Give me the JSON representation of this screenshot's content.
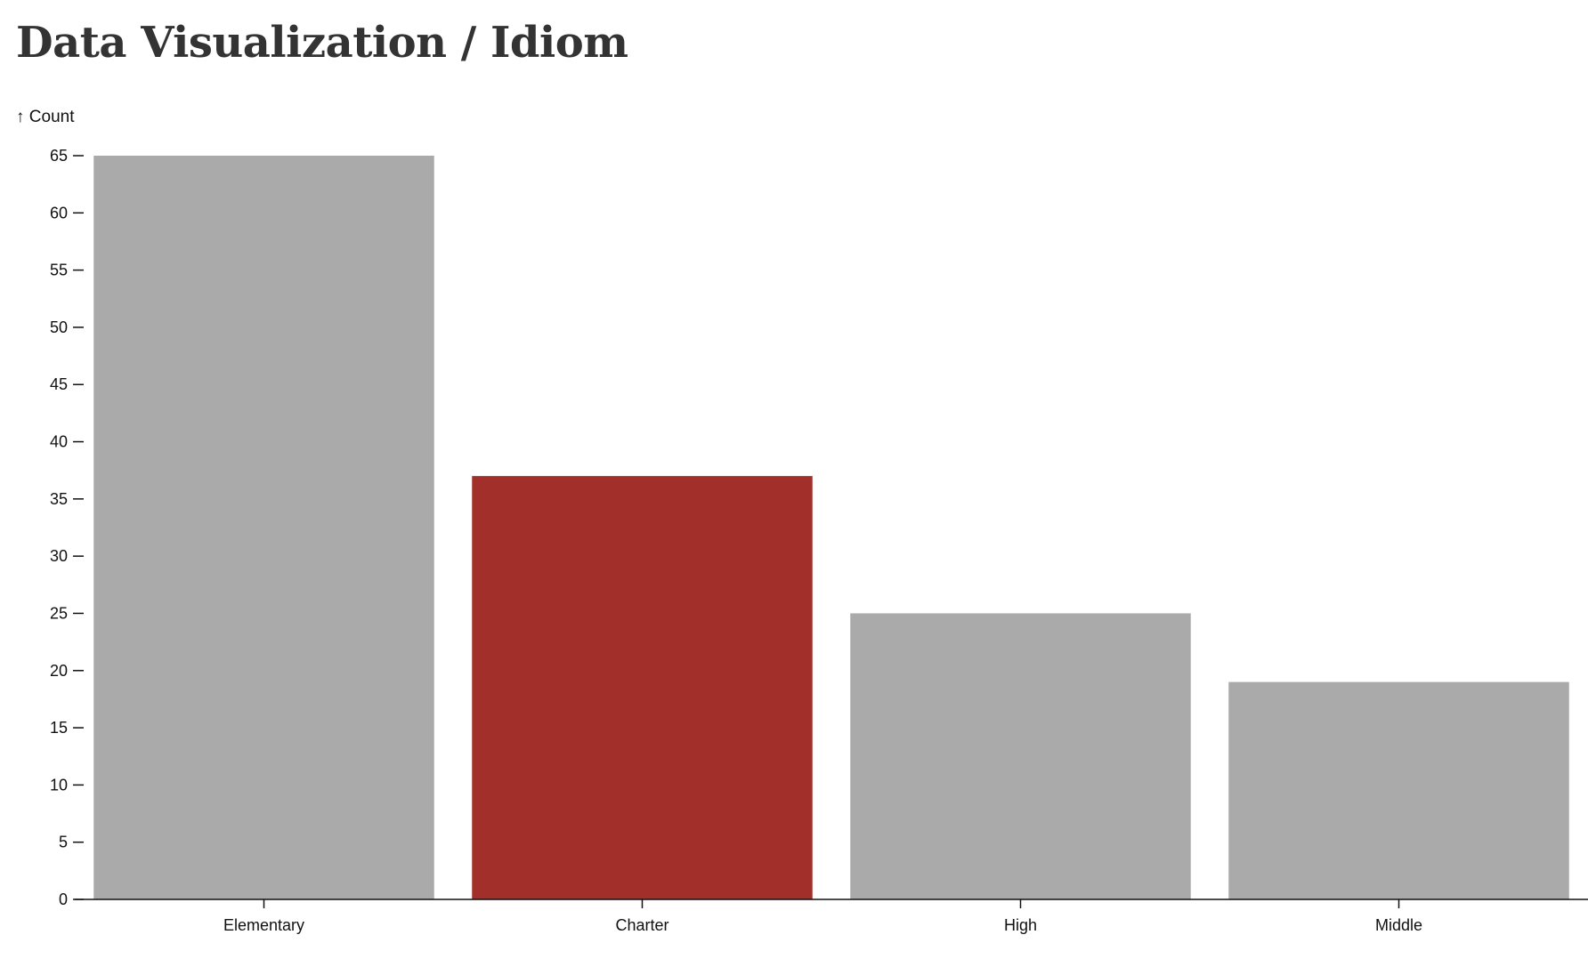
{
  "page": {
    "title": "Data Visualization / Idiom"
  },
  "chart_data": {
    "type": "bar",
    "title": "",
    "xlabel": "",
    "ylabel": "↑ Count",
    "categories": [
      "Elementary",
      "Charter",
      "High",
      "Middle"
    ],
    "values": [
      65,
      37,
      25,
      19
    ],
    "highlight_category": "Charter",
    "ylim": [
      0,
      65
    ],
    "yticks": [
      0,
      5,
      10,
      15,
      20,
      25,
      30,
      35,
      40,
      45,
      50,
      55,
      60,
      65
    ],
    "grid": false,
    "legend": "none",
    "colors": {
      "default": "#aaaaaa",
      "highlight": "#a32f2b",
      "axis": "#111111"
    }
  }
}
